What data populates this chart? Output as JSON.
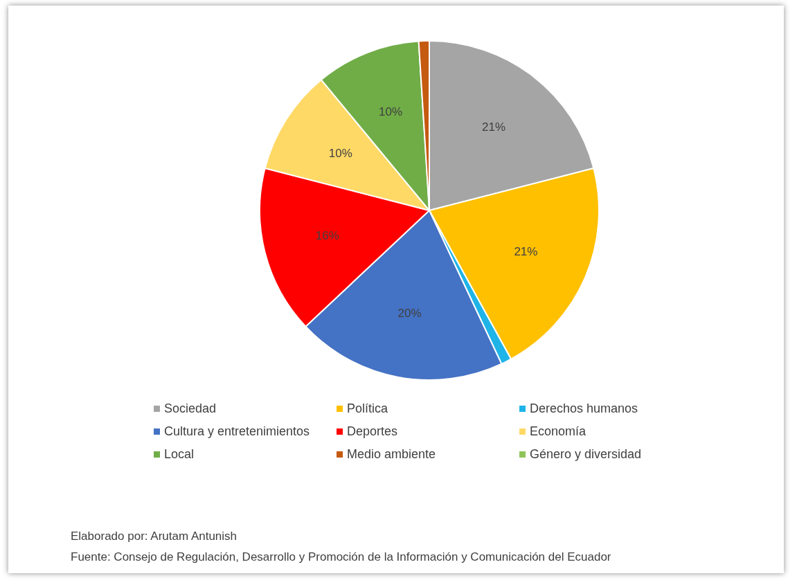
{
  "chart_data": {
    "type": "pie",
    "categories": [
      "Sociedad",
      "Política",
      "Derechos humanos",
      "Cultura y entretenimientos",
      "Deportes",
      "Economía",
      "Local",
      "Medio ambiente",
      "Género y diversidad"
    ],
    "values": [
      21,
      21,
      1,
      20,
      16,
      10,
      10,
      1,
      0
    ],
    "colors": [
      "#a5a5a5",
      "#ffc000",
      "#1eb4e8",
      "#4472c4",
      "#ff0000",
      "#ffd966",
      "#70ad47",
      "#c55a11",
      "#8fc45a"
    ],
    "value_labels": [
      "21%",
      "21%",
      null,
      "20%",
      "16%",
      "10%",
      "10%",
      null,
      null
    ],
    "legend": "bottom",
    "annotations": [
      "Elaborado por: Arutam Antunish",
      "Fuente: Consejo de Regulación, Desarrollo y Promoción de la Información y Comunicación del Ecuador"
    ]
  }
}
